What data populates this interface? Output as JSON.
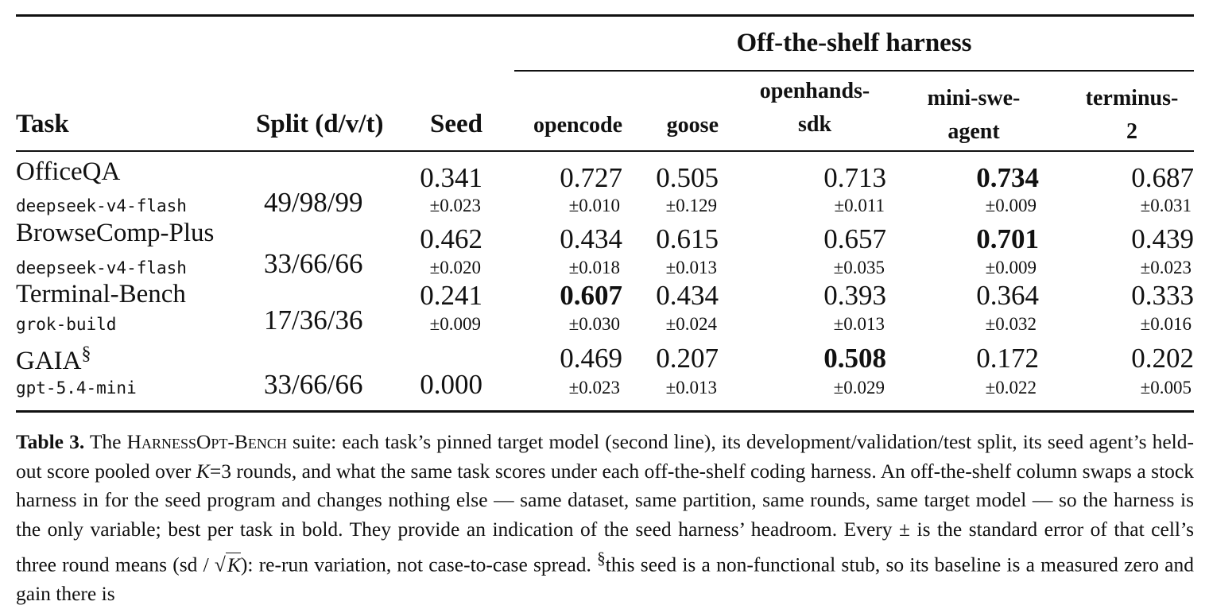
{
  "table": {
    "group_header": "Off-the-shelf harness",
    "columns": {
      "task": "Task",
      "split": "Split (d/v/t)",
      "seed": "Seed",
      "opencode": "opencode",
      "goose": "goose",
      "openhands_l1": "openhands-",
      "openhands_l2": "sdk",
      "miniswe_l1": "mini-swe-",
      "miniswe_l2": "agent",
      "terminus_l1": "terminus-",
      "terminus_l2": "2"
    },
    "rows": [
      {
        "task": "OfficeQA",
        "model": "deepseek-v4-flash",
        "split": "49/98/99",
        "seed": "0.341",
        "seed_se": "±0.023",
        "opencode": "0.727",
        "opencode_se": "±0.010",
        "goose": "0.505",
        "goose_se": "±0.129",
        "openhands": "0.713",
        "openhands_se": "±0.011",
        "miniswe": "0.734",
        "miniswe_se": "±0.009",
        "terminus": "0.687",
        "terminus_se": "±0.031",
        "best": "miniswe"
      },
      {
        "task": "BrowseComp-Plus",
        "model": "deepseek-v4-flash",
        "split": "33/66/66",
        "seed": "0.462",
        "seed_se": "±0.020",
        "opencode": "0.434",
        "opencode_se": "±0.018",
        "goose": "0.615",
        "goose_se": "±0.013",
        "openhands": "0.657",
        "openhands_se": "±0.035",
        "miniswe": "0.701",
        "miniswe_se": "±0.009",
        "terminus": "0.439",
        "terminus_se": "±0.023",
        "best": "miniswe"
      },
      {
        "task": "Terminal-Bench",
        "model": "grok-build",
        "split": "17/36/36",
        "seed": "0.241",
        "seed_se": "±0.009",
        "opencode": "0.607",
        "opencode_se": "±0.030",
        "goose": "0.434",
        "goose_se": "±0.024",
        "openhands": "0.393",
        "openhands_se": "±0.013",
        "miniswe": "0.364",
        "miniswe_se": "±0.032",
        "terminus": "0.333",
        "terminus_se": "±0.016",
        "best": "opencode"
      },
      {
        "task": "GAIA",
        "task_mark": "§",
        "model": "gpt-5.4-mini",
        "split": "33/66/66",
        "seed": "0.000",
        "opencode": "0.469",
        "opencode_se": "±0.023",
        "goose": "0.207",
        "goose_se": "±0.013",
        "openhands": "0.508",
        "openhands_se": "±0.029",
        "miniswe": "0.172",
        "miniswe_se": "±0.022",
        "terminus": "0.202",
        "terminus_se": "±0.005",
        "best": "openhands"
      }
    ]
  },
  "caption": {
    "label": "Table 3.",
    "t1": " The ",
    "suite_name": "HarnessOpt-Bench",
    "t2": " suite: each task’s pinned target model (second line), its development/validation/test split, its seed agent’s held-out score pooled over ",
    "k": "K",
    "t3": "=3 rounds, and what the same task scores under each off-the-shelf coding harness. An off-the-shelf column swaps a stock harness in for the seed program and changes nothing else — same dataset, same partition, same rounds, same target model — so the harness is the only variable; best per task in bold. They provide an indication of the seed harness’ headroom. Every ± is the standard error of that cell’s three round means (sd / ",
    "sqrt_k": "K",
    "t4": "): re-run variation, not case-to-case spread. ",
    "mark": "§",
    "t5": "this seed is a non-functional stub, so its baseline is a measured zero and gain there is"
  }
}
